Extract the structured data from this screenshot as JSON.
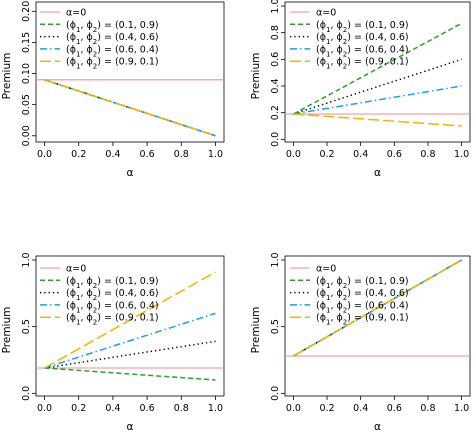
{
  "chart_data": [
    {
      "type": "line",
      "panel": "top-left",
      "xlabel": "α",
      "ylabel": "Premium",
      "xlim": [
        -0.05,
        1.05
      ],
      "ylim": [
        -0.01,
        0.215
      ],
      "xticks": [
        0.0,
        0.2,
        0.4,
        0.6,
        0.8,
        1.0
      ],
      "xtick_labels": [
        "0.0",
        "0.2",
        "0.4",
        "0.6",
        "0.8",
        "1.0"
      ],
      "yticks": [
        0.0,
        0.05,
        0.1,
        0.15,
        0.2
      ],
      "ytick_labels": [
        "0.00",
        "0.05",
        "0.10",
        "0.15",
        "0.20"
      ],
      "x": [
        0.0,
        0.2,
        0.4,
        0.6,
        0.8,
        1.0
      ],
      "legend_position": "top-left",
      "series": [
        {
          "name": "α=0",
          "color": "#f08c96",
          "style": "solid",
          "x": [
            -0.05,
            1.05
          ],
          "values": [
            0.09,
            0.09
          ]
        },
        {
          "name": "(ϕ1, ϕ2) = (0.1, 0.9)",
          "color": "#2ca02c",
          "style": "dashed-short",
          "values": [
            0.09,
            0.072,
            0.054,
            0.036,
            0.018,
            0.0
          ]
        },
        {
          "name": "(ϕ1, ϕ2) = (0.4, 0.6)",
          "color": "#000000",
          "style": "dotted",
          "values": [
            0.09,
            0.072,
            0.054,
            0.036,
            0.018,
            0.0
          ]
        },
        {
          "name": "(ϕ1, ϕ2) = (0.6, 0.4)",
          "color": "#1f9ee8",
          "style": "dashdot",
          "values": [
            0.09,
            0.072,
            0.054,
            0.036,
            0.018,
            0.0
          ]
        },
        {
          "name": "(ϕ1, ϕ2) = (0.9, 0.1)",
          "color": "#f0b400",
          "style": "dashed-long",
          "values": [
            0.09,
            0.072,
            0.054,
            0.036,
            0.018,
            0.0
          ]
        }
      ]
    },
    {
      "type": "line",
      "panel": "top-right",
      "xlabel": "α",
      "ylabel": "Premium",
      "xlim": [
        -0.05,
        1.05
      ],
      "ylim": [
        -0.02,
        1.03
      ],
      "xticks": [
        0.0,
        0.2,
        0.4,
        0.6,
        0.8,
        1.0
      ],
      "xtick_labels": [
        "0.0",
        "0.2",
        "0.4",
        "0.6",
        "0.8",
        "1.0"
      ],
      "yticks": [
        0.0,
        0.2,
        0.4,
        0.6,
        0.8,
        1.0
      ],
      "ytick_labels": [
        "0.0",
        "0.2",
        "0.4",
        "0.6",
        "0.8",
        "1.0"
      ],
      "x": [
        0.0,
        0.2,
        0.4,
        0.6,
        0.8,
        1.0
      ],
      "legend_position": "top-left",
      "series": [
        {
          "name": "α=0",
          "color": "#f08c96",
          "style": "solid",
          "x": [
            -0.05,
            1.05
          ],
          "values": [
            0.19,
            0.19
          ]
        },
        {
          "name": "(ϕ1, ϕ2) = (0.1, 0.9)",
          "color": "#2ca02c",
          "style": "dashed-short",
          "values": [
            0.19,
            0.326,
            0.462,
            0.598,
            0.734,
            0.87
          ]
        },
        {
          "name": "(ϕ1, ϕ2) = (0.4, 0.6)",
          "color": "#000000",
          "style": "dotted",
          "values": [
            0.19,
            0.272,
            0.354,
            0.436,
            0.518,
            0.6
          ]
        },
        {
          "name": "(ϕ1, ϕ2) = (0.6, 0.4)",
          "color": "#1f9ee8",
          "style": "dashdot",
          "values": [
            0.19,
            0.232,
            0.274,
            0.316,
            0.358,
            0.4
          ]
        },
        {
          "name": "(ϕ1, ϕ2) = (0.9, 0.1)",
          "color": "#f0b400",
          "style": "dashed-long",
          "values": [
            0.19,
            0.172,
            0.154,
            0.136,
            0.118,
            0.1
          ]
        }
      ]
    },
    {
      "type": "line",
      "panel": "bottom-left",
      "xlabel": "α",
      "ylabel": "Premium",
      "xlim": [
        -0.05,
        1.05
      ],
      "ylim": [
        -0.02,
        1.03
      ],
      "xticks": [
        0.0,
        0.2,
        0.4,
        0.6,
        0.8,
        1.0
      ],
      "xtick_labels": [
        "0.0",
        "0.2",
        "0.4",
        "0.6",
        "0.8",
        "1.0"
      ],
      "yticks": [
        0.0,
        0.5,
        1.0
      ],
      "ytick_labels": [
        "0.0",
        "0.5",
        "1.0"
      ],
      "x": [
        0.0,
        0.2,
        0.4,
        0.6,
        0.8,
        1.0
      ],
      "legend_position": "top-left",
      "series": [
        {
          "name": "α=0",
          "color": "#f08c96",
          "style": "solid",
          "x": [
            -0.05,
            1.05
          ],
          "values": [
            0.19,
            0.19
          ]
        },
        {
          "name": "(ϕ1, ϕ2) = (0.1, 0.9)",
          "color": "#2ca02c",
          "style": "dashed-short",
          "values": [
            0.19,
            0.172,
            0.154,
            0.136,
            0.118,
            0.1
          ]
        },
        {
          "name": "(ϕ1, ϕ2) = (0.4, 0.6)",
          "color": "#000000",
          "style": "dotted",
          "values": [
            0.19,
            0.23,
            0.27,
            0.31,
            0.35,
            0.39
          ]
        },
        {
          "name": "(ϕ1, ϕ2) = (0.6, 0.4)",
          "color": "#1f9ee8",
          "style": "dashdot",
          "values": [
            0.19,
            0.272,
            0.354,
            0.436,
            0.518,
            0.6
          ]
        },
        {
          "name": "(ϕ1, ϕ2) = (0.9, 0.1)",
          "color": "#f0b400",
          "style": "dashed-long",
          "values": [
            0.19,
            0.334,
            0.478,
            0.622,
            0.766,
            0.91
          ]
        }
      ]
    },
    {
      "type": "line",
      "panel": "bottom-right",
      "xlabel": "α",
      "ylabel": "Premium",
      "xlim": [
        -0.05,
        1.05
      ],
      "ylim": [
        -0.02,
        1.03
      ],
      "xticks": [
        0.0,
        0.2,
        0.4,
        0.6,
        0.8,
        1.0
      ],
      "xtick_labels": [
        "0.0",
        "0.2",
        "0.4",
        "0.6",
        "0.8",
        "1.0"
      ],
      "yticks": [
        0.0,
        0.5,
        1.0
      ],
      "ytick_labels": [
        "0.0",
        "0.5",
        "1.0"
      ],
      "x": [
        0.0,
        0.2,
        0.4,
        0.6,
        0.8,
        1.0
      ],
      "legend_position": "top-left",
      "series": [
        {
          "name": "α=0",
          "color": "#f08c96",
          "style": "solid",
          "x": [
            -0.05,
            1.05
          ],
          "values": [
            0.28,
            0.28
          ]
        },
        {
          "name": "(ϕ1, ϕ2) = (0.1, 0.9)",
          "color": "#2ca02c",
          "style": "dashed-short",
          "values": [
            0.28,
            0.424,
            0.568,
            0.712,
            0.856,
            1.0
          ]
        },
        {
          "name": "(ϕ1, ϕ2) = (0.4, 0.6)",
          "color": "#000000",
          "style": "dotted",
          "values": [
            0.28,
            0.424,
            0.568,
            0.712,
            0.856,
            1.0
          ]
        },
        {
          "name": "(ϕ1, ϕ2) = (0.6, 0.4)",
          "color": "#1f9ee8",
          "style": "dashdot",
          "values": [
            0.28,
            0.424,
            0.568,
            0.712,
            0.856,
            1.0
          ]
        },
        {
          "name": "(ϕ1, ϕ2) = (0.9, 0.1)",
          "color": "#f0b400",
          "style": "dashed-long",
          "values": [
            0.28,
            0.424,
            0.568,
            0.712,
            0.856,
            1.0
          ]
        }
      ]
    }
  ]
}
